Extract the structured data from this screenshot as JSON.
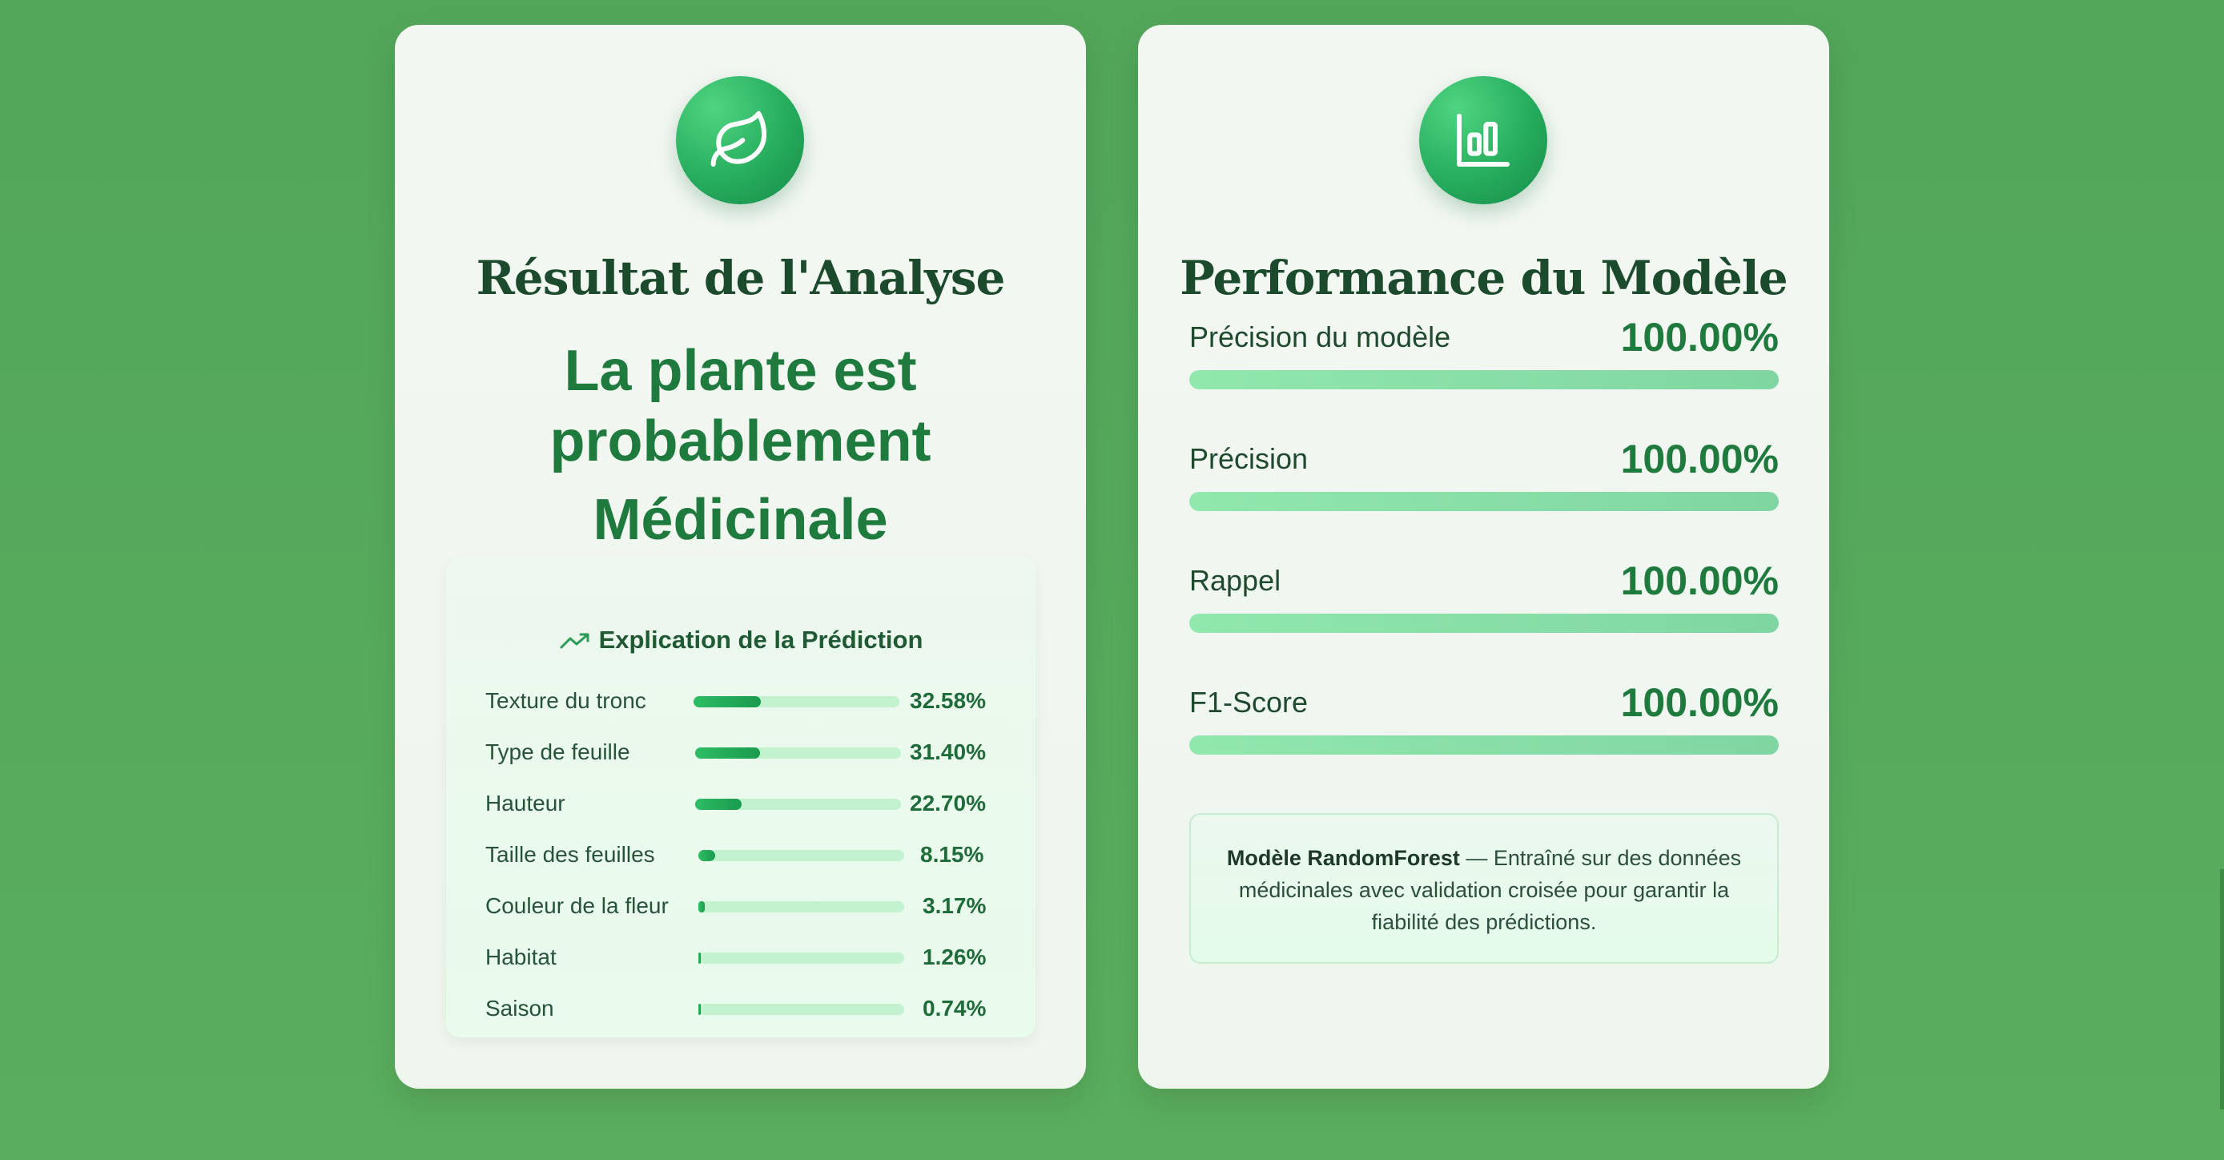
{
  "analysis": {
    "icon": "leaf-icon",
    "title": "Résultat de l'Analyse",
    "result_line1": "La plante est",
    "result_line2": "probablement",
    "result_line3": "Médicinale",
    "explanation": {
      "icon": "trending-up-icon",
      "title": "Explication de la Prédiction",
      "features": [
        {
          "label": "Texture du tronc",
          "value": "32.58%",
          "fraction": 0.3258
        },
        {
          "label": "Type de feuille",
          "value": "31.40%",
          "fraction": 0.314
        },
        {
          "label": "Hauteur",
          "value": "22.70%",
          "fraction": 0.227
        },
        {
          "label": "Taille des feuilles",
          "value": "8.15%",
          "fraction": 0.0815
        },
        {
          "label": "Couleur de la fleur",
          "value": "3.17%",
          "fraction": 0.0317
        },
        {
          "label": "Habitat",
          "value": "1.26%",
          "fraction": 0.0126
        },
        {
          "label": "Saison",
          "value": "0.74%",
          "fraction": 0.0074
        }
      ]
    }
  },
  "performance": {
    "icon": "bar-chart-icon",
    "title": "Performance du Modèle",
    "metrics": [
      {
        "label": "Précision du modèle",
        "value": "100.00%",
        "fraction": 1.0
      },
      {
        "label": "Précision",
        "value": "100.00%",
        "fraction": 1.0
      },
      {
        "label": "Rappel",
        "value": "100.00%",
        "fraction": 1.0
      },
      {
        "label": "F1-Score",
        "value": "100.00%",
        "fraction": 1.0
      }
    ],
    "model_name": "Modèle RandomForest",
    "model_desc": " — Entraîné sur des données médicinales avec validation croisée pour garantir la fiabilité des prédictions."
  },
  "colors": {
    "background": "#55a85b",
    "accent": "#1f7a3e",
    "bar_fill": "#26ad5d",
    "bar_track": "#c3f2d1"
  }
}
